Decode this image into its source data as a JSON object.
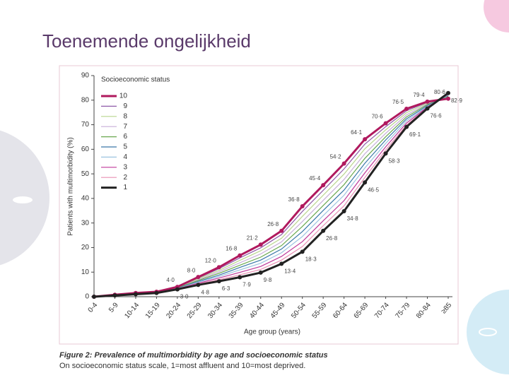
{
  "slide_title": "Toenemende ongelijkheid",
  "chart_data": {
    "type": "line",
    "y_label": "Patients with multimorbidity (%)",
    "x_label": "Age group (years)",
    "legend_title": "Socioeconomic status",
    "categories": [
      "0-4",
      "5-9",
      "10-14",
      "15-19",
      "20-24",
      "25-29",
      "30-34",
      "35-39",
      "40-44",
      "45-49",
      "50-54",
      "55-59",
      "60-64",
      "65-69",
      "70-74",
      "75-79",
      "80-84",
      "≥85"
    ],
    "ylim": [
      0,
      90
    ],
    "yticks": [
      0,
      10,
      20,
      30,
      40,
      50,
      60,
      70,
      80,
      90
    ],
    "series": [
      {
        "name": "10",
        "color": "#b0195e",
        "values": [
          0,
          0.8,
          1.5,
          2,
          4.0,
          8.0,
          12.0,
          16.8,
          21.2,
          26.8,
          36.8,
          45.4,
          54.2,
          64.1,
          70.6,
          76.5,
          79.4,
          80.6
        ],
        "value_labels": [
          null,
          null,
          null,
          null,
          "4·0",
          "8·0",
          "12·0",
          "16·8",
          "21·2",
          "26·8",
          "36·8",
          "45·4",
          "54·2",
          "64·1",
          "70·6",
          "76·5",
          "79·4",
          "80·6"
        ]
      },
      {
        "name": "9",
        "color": "#8e5aa8",
        "values": [
          0,
          0.8,
          1.4,
          1.9,
          3.9,
          7.6,
          11.4,
          15.8,
          19.9,
          25.3,
          34.7,
          43.3,
          52.0,
          62.1,
          69.2,
          75.7,
          79.1,
          80.9
        ]
      },
      {
        "name": "8",
        "color": "#b9d58e",
        "values": [
          0,
          0.7,
          1.4,
          1.9,
          3.8,
          7.3,
          10.7,
          14.8,
          18.7,
          23.8,
          32.7,
          41.3,
          49.9,
          60.2,
          67.9,
          74.9,
          78.8,
          81.1
        ]
      },
      {
        "name": "7",
        "color": "#c7aed8",
        "values": [
          0,
          0.7,
          1.3,
          1.8,
          3.7,
          6.9,
          10.1,
          13.8,
          17.4,
          22.3,
          30.6,
          39.2,
          47.7,
          58.2,
          66.5,
          74.0,
          78.5,
          81.4
        ]
      },
      {
        "name": "6",
        "color": "#6aa84f",
        "values": [
          0,
          0.7,
          1.3,
          1.8,
          3.6,
          6.6,
          9.5,
          12.8,
          16.1,
          20.8,
          28.6,
          37.1,
          45.6,
          56.3,
          65.1,
          73.2,
          78.2,
          81.6
        ]
      },
      {
        "name": "5",
        "color": "#3a77a8",
        "values": [
          0,
          0.6,
          1.2,
          1.7,
          3.4,
          6.2,
          8.8,
          11.9,
          14.9,
          19.4,
          26.5,
          35.1,
          43.4,
          54.3,
          63.8,
          72.4,
          77.8,
          81.9
        ]
      },
      {
        "name": "4",
        "color": "#9cc3e0",
        "values": [
          0,
          0.6,
          1.2,
          1.7,
          3.3,
          5.9,
          8.2,
          10.9,
          13.6,
          17.9,
          24.5,
          33.0,
          41.3,
          52.4,
          62.4,
          71.6,
          77.5,
          82.1
        ]
      },
      {
        "name": "3",
        "color": "#c0399a",
        "values": [
          0,
          0.6,
          1.1,
          1.6,
          3.2,
          5.5,
          7.6,
          9.9,
          12.3,
          16.4,
          22.4,
          30.9,
          39.1,
          50.4,
          61.0,
          70.7,
          77.2,
          82.4
        ]
      },
      {
        "name": "2",
        "color": "#e890b4",
        "values": [
          0,
          0.5,
          1.1,
          1.6,
          3.1,
          5.2,
          6.9,
          8.9,
          11.1,
          14.9,
          20.4,
          28.9,
          37.0,
          48.5,
          59.7,
          69.9,
          76.9,
          82.6
        ]
      },
      {
        "name": "1",
        "color": "#222222",
        "values": [
          0,
          0.5,
          1,
          1.5,
          3.0,
          4.8,
          6.3,
          7.9,
          9.8,
          13.4,
          18.3,
          26.8,
          34.8,
          46.5,
          58.3,
          69.1,
          76.6,
          82.9
        ],
        "value_labels": [
          null,
          null,
          null,
          null,
          "3·0",
          "4·8",
          "6·3",
          "7·9",
          "9·8",
          "13·4",
          "18·3",
          "26·8",
          "34·8",
          "46·5",
          "58·3",
          "69·1",
          "76·6",
          "82·9"
        ]
      }
    ]
  },
  "caption": {
    "title": "Figure 2: Prevalence of multimorbidity by age and socioeconomic status",
    "subtitle": "On socioeconomic status scale, 1=most affluent and 10=most deprived."
  }
}
